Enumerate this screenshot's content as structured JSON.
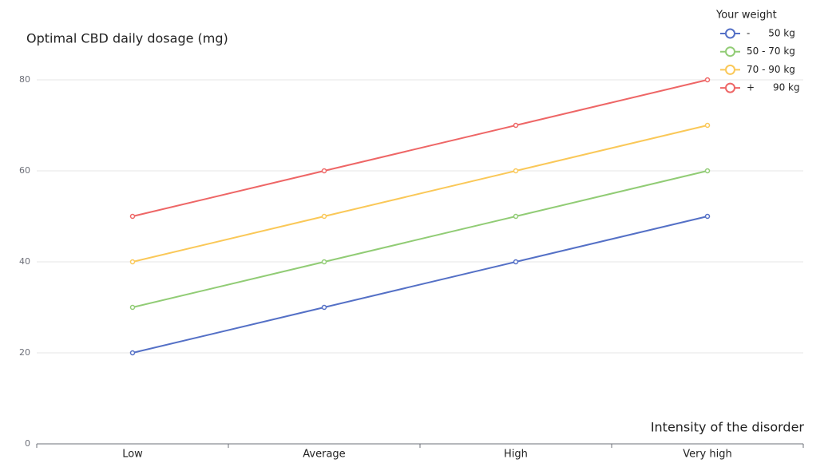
{
  "chart_data": {
    "type": "line",
    "y_axis_title": "Optimal CBD daily dosage (mg)",
    "x_axis_title": "Intensity of the disorder",
    "legend_title": "Your weight",
    "legend_position": "top-right",
    "categories": [
      "Low",
      "Average",
      "High",
      "Very high"
    ],
    "series": [
      {
        "name": "-      50 kg",
        "color": "#5470c6",
        "values": [
          20,
          30,
          40,
          50
        ]
      },
      {
        "name": "50 - 70 kg",
        "color": "#91cc75",
        "values": [
          30,
          40,
          50,
          60
        ]
      },
      {
        "name": "70 - 90 kg",
        "color": "#fac858",
        "values": [
          40,
          50,
          60,
          70
        ]
      },
      {
        "name": "+      90 kg",
        "color": "#ee6666",
        "values": [
          50,
          60,
          70,
          80
        ]
      }
    ],
    "ylim": [
      0,
      80
    ],
    "yticks": [
      0,
      20,
      40,
      60,
      80
    ],
    "grid": true
  }
}
